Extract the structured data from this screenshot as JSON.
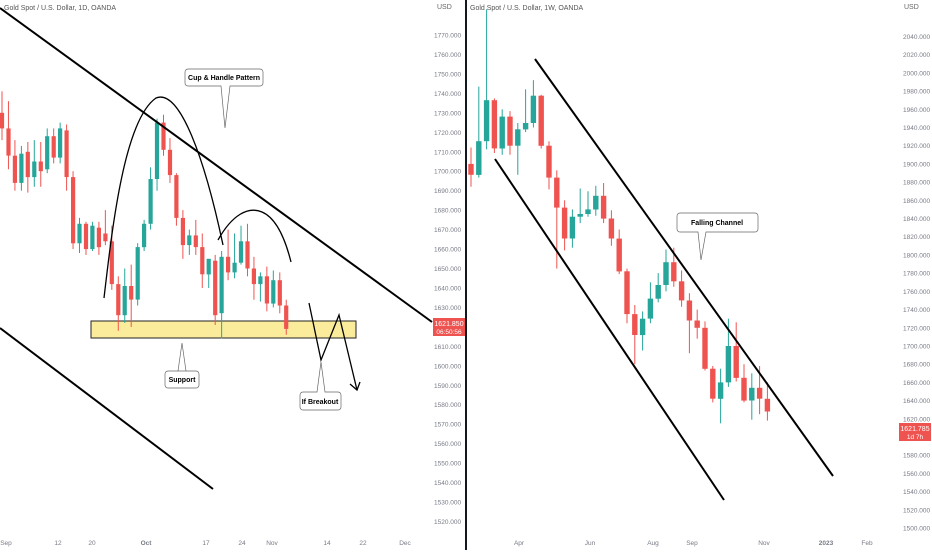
{
  "colors": {
    "up": "#26a69a",
    "down": "#ef5350",
    "line": "#000000",
    "zone": "#fbec9c",
    "zone_border": "#222222",
    "axis_text": "#787b86"
  },
  "left": {
    "header": "Gold Spot / U.S. Dollar, 1D, OANDA",
    "currency": "USD",
    "price_ticks": [
      "1770.000",
      "1760.000",
      "1750.000",
      "1740.000",
      "1730.000",
      "1720.000",
      "1710.000",
      "1700.000",
      "1690.000",
      "1680.000",
      "1670.000",
      "1660.000",
      "1650.000",
      "1640.000",
      "1630.000",
      "1620.000",
      "1610.000",
      "1600.000",
      "1590.000",
      "1580.000",
      "1570.000",
      "1560.000",
      "1550.000",
      "1540.000",
      "1530.000",
      "1520.000"
    ],
    "time_ticks": [
      "Sep",
      "12",
      "20",
      "Oct",
      "17",
      "24",
      "Nov",
      "14",
      "22",
      "Dec"
    ],
    "price_label": {
      "price": "1621.850",
      "timer": "06:50:56"
    },
    "annotations": {
      "cup": "Cup & Handle Pattern",
      "support": "Support",
      "breakout": "If Breakout"
    }
  },
  "right": {
    "header": "Gold Spot / U.S. Dollar, 1W, OANDA",
    "currency": "USD",
    "price_ticks": [
      "2040.000",
      "2020.000",
      "2000.000",
      "1980.000",
      "1960.000",
      "1940.000",
      "1920.000",
      "1900.000",
      "1880.000",
      "1860.000",
      "1840.000",
      "1820.000",
      "1800.000",
      "1780.000",
      "1760.000",
      "1740.000",
      "1720.000",
      "1700.000",
      "1680.000",
      "1660.000",
      "1640.000",
      "1620.000",
      "1600.000",
      "1580.000",
      "1560.000",
      "1540.000",
      "1520.000",
      "1500.000"
    ],
    "time_ticks": [
      "Apr",
      "Jun",
      "Aug",
      "Sep",
      "Nov",
      "2023",
      "Feb"
    ],
    "price_label": {
      "price": "1621.785",
      "timer": "1d 7h"
    },
    "annotations": {
      "channel": "Falling Channel"
    }
  },
  "chart_data": [
    {
      "type": "candlestick",
      "title": "Gold Spot / U.S. Dollar, 1D, OANDA",
      "ylabel": "USD",
      "ylim": [
        1520,
        1770
      ],
      "last_price": 1621.85,
      "candles": [
        {
          "o": 1730,
          "h": 1741,
          "c": 1722,
          "l": 1716
        },
        {
          "o": 1722,
          "h": 1736,
          "c": 1708,
          "l": 1701
        },
        {
          "o": 1708,
          "h": 1716,
          "c": 1694,
          "l": 1690
        },
        {
          "o": 1694,
          "h": 1713,
          "c": 1709,
          "l": 1690
        },
        {
          "o": 1710,
          "h": 1715,
          "c": 1697,
          "l": 1689
        },
        {
          "o": 1697,
          "h": 1716,
          "c": 1705,
          "l": 1692
        },
        {
          "o": 1705,
          "h": 1715,
          "c": 1700,
          "l": 1692
        },
        {
          "o": 1701,
          "h": 1722,
          "c": 1718,
          "l": 1699
        },
        {
          "o": 1718,
          "h": 1722,
          "c": 1707,
          "l": 1704
        },
        {
          "o": 1707,
          "h": 1725,
          "c": 1722,
          "l": 1704
        },
        {
          "o": 1721,
          "h": 1724,
          "c": 1697,
          "l": 1690
        },
        {
          "o": 1697,
          "h": 1700,
          "c": 1663,
          "l": 1660
        },
        {
          "o": 1663,
          "h": 1676,
          "c": 1673,
          "l": 1658
        },
        {
          "o": 1673,
          "h": 1674,
          "c": 1660,
          "l": 1657
        },
        {
          "o": 1660,
          "h": 1674,
          "c": 1672,
          "l": 1659
        },
        {
          "o": 1671,
          "h": 1674,
          "c": 1661,
          "l": 1657
        },
        {
          "o": 1668,
          "h": 1680,
          "c": 1664,
          "l": 1662
        },
        {
          "o": 1664,
          "h": 1672,
          "c": 1642,
          "l": 1639
        },
        {
          "o": 1642,
          "h": 1646,
          "c": 1626,
          "l": 1618
        },
        {
          "o": 1626,
          "h": 1650,
          "c": 1641,
          "l": 1622
        },
        {
          "o": 1641,
          "h": 1652,
          "c": 1634,
          "l": 1620
        },
        {
          "o": 1634,
          "h": 1663,
          "c": 1661,
          "l": 1631
        },
        {
          "o": 1661,
          "h": 1675,
          "c": 1673,
          "l": 1659
        },
        {
          "o": 1673,
          "h": 1702,
          "c": 1696,
          "l": 1670
        },
        {
          "o": 1696,
          "h": 1727,
          "c": 1725,
          "l": 1690
        },
        {
          "o": 1725,
          "h": 1729,
          "c": 1711,
          "l": 1708
        },
        {
          "o": 1711,
          "h": 1717,
          "c": 1698,
          "l": 1694
        },
        {
          "o": 1698,
          "h": 1699,
          "c": 1676,
          "l": 1672
        },
        {
          "o": 1676,
          "h": 1680,
          "c": 1662,
          "l": 1655
        },
        {
          "o": 1662,
          "h": 1670,
          "c": 1667,
          "l": 1657
        },
        {
          "o": 1667,
          "h": 1675,
          "c": 1661,
          "l": 1657
        },
        {
          "o": 1661,
          "h": 1668,
          "c": 1647,
          "l": 1640
        },
        {
          "o": 1647,
          "h": 1653,
          "c": 1655,
          "l": 1640
        },
        {
          "o": 1654,
          "h": 1657,
          "c": 1626,
          "l": 1621
        },
        {
          "o": 1627,
          "h": 1659,
          "c": 1656,
          "l": 1614
        },
        {
          "o": 1656,
          "h": 1670,
          "c": 1648,
          "l": 1644
        },
        {
          "o": 1648,
          "h": 1668,
          "c": 1653,
          "l": 1645
        },
        {
          "o": 1653,
          "h": 1672,
          "c": 1664,
          "l": 1652
        },
        {
          "o": 1664,
          "h": 1673,
          "c": 1650,
          "l": 1646
        },
        {
          "o": 1650,
          "h": 1656,
          "c": 1642,
          "l": 1634
        },
        {
          "o": 1642,
          "h": 1648,
          "c": 1646,
          "l": 1633
        },
        {
          "o": 1646,
          "h": 1651,
          "c": 1632,
          "l": 1628
        },
        {
          "o": 1632,
          "h": 1649,
          "c": 1644,
          "l": 1630
        },
        {
          "o": 1644,
          "h": 1648,
          "c": 1631,
          "l": 1627
        },
        {
          "o": 1631,
          "h": 1634,
          "c": 1619,
          "l": 1616
        }
      ]
    },
    {
      "type": "candlestick",
      "title": "Gold Spot / U.S. Dollar, 1W, OANDA",
      "ylabel": "USD",
      "ylim": [
        1500,
        2040
      ],
      "last_price": 1621.785,
      "candles": [
        {
          "o": 1900,
          "h": 1918,
          "c": 1888,
          "l": 1875
        },
        {
          "o": 1888,
          "h": 1985,
          "c": 1925,
          "l": 1885
        },
        {
          "o": 1925,
          "h": 2070,
          "c": 1970,
          "l": 1916
        },
        {
          "o": 1970,
          "h": 1972,
          "c": 1917,
          "l": 1912
        },
        {
          "o": 1917,
          "h": 1960,
          "c": 1952,
          "l": 1910
        },
        {
          "o": 1952,
          "h": 1958,
          "c": 1920,
          "l": 1910
        },
        {
          "o": 1920,
          "h": 1945,
          "c": 1938,
          "l": 1888
        },
        {
          "o": 1938,
          "h": 1982,
          "c": 1945,
          "l": 1935
        },
        {
          "o": 1945,
          "h": 1992,
          "c": 1975,
          "l": 1940
        },
        {
          "o": 1975,
          "h": 1976,
          "c": 1920,
          "l": 1917
        },
        {
          "o": 1920,
          "h": 1925,
          "c": 1885,
          "l": 1872
        },
        {
          "o": 1885,
          "h": 1893,
          "c": 1852,
          "l": 1785
        },
        {
          "o": 1852,
          "h": 1860,
          "c": 1818,
          "l": 1805
        },
        {
          "o": 1818,
          "h": 1850,
          "c": 1842,
          "l": 1808
        },
        {
          "o": 1842,
          "h": 1873,
          "c": 1845,
          "l": 1835
        },
        {
          "o": 1845,
          "h": 1870,
          "c": 1850,
          "l": 1842
        },
        {
          "o": 1850,
          "h": 1876,
          "c": 1865,
          "l": 1843
        },
        {
          "o": 1865,
          "h": 1879,
          "c": 1840,
          "l": 1835
        },
        {
          "o": 1840,
          "h": 1849,
          "c": 1818,
          "l": 1810
        },
        {
          "o": 1818,
          "h": 1828,
          "c": 1782,
          "l": 1779
        },
        {
          "o": 1782,
          "h": 1785,
          "c": 1735,
          "l": 1725
        },
        {
          "o": 1735,
          "h": 1745,
          "c": 1712,
          "l": 1680
        },
        {
          "o": 1712,
          "h": 1738,
          "c": 1730,
          "l": 1695
        },
        {
          "o": 1730,
          "h": 1770,
          "c": 1752,
          "l": 1725
        },
        {
          "o": 1752,
          "h": 1780,
          "c": 1767,
          "l": 1748
        },
        {
          "o": 1767,
          "h": 1806,
          "c": 1792,
          "l": 1760
        },
        {
          "o": 1792,
          "h": 1808,
          "c": 1771,
          "l": 1765
        },
        {
          "o": 1771,
          "h": 1783,
          "c": 1750,
          "l": 1743
        },
        {
          "o": 1750,
          "h": 1758,
          "c": 1728,
          "l": 1692
        },
        {
          "o": 1728,
          "h": 1740,
          "c": 1720,
          "l": 1708
        },
        {
          "o": 1720,
          "h": 1727,
          "c": 1675,
          "l": 1673
        },
        {
          "o": 1675,
          "h": 1678,
          "c": 1642,
          "l": 1638
        },
        {
          "o": 1642,
          "h": 1675,
          "c": 1660,
          "l": 1615
        },
        {
          "o": 1660,
          "h": 1730,
          "c": 1700,
          "l": 1655
        },
        {
          "o": 1700,
          "h": 1726,
          "c": 1665,
          "l": 1661
        },
        {
          "o": 1665,
          "h": 1680,
          "c": 1640,
          "l": 1638
        },
        {
          "o": 1640,
          "h": 1670,
          "c": 1654,
          "l": 1619
        },
        {
          "o": 1654,
          "h": 1678,
          "c": 1642,
          "l": 1625
        },
        {
          "o": 1642,
          "h": 1660,
          "c": 1628,
          "l": 1618
        }
      ]
    }
  ]
}
